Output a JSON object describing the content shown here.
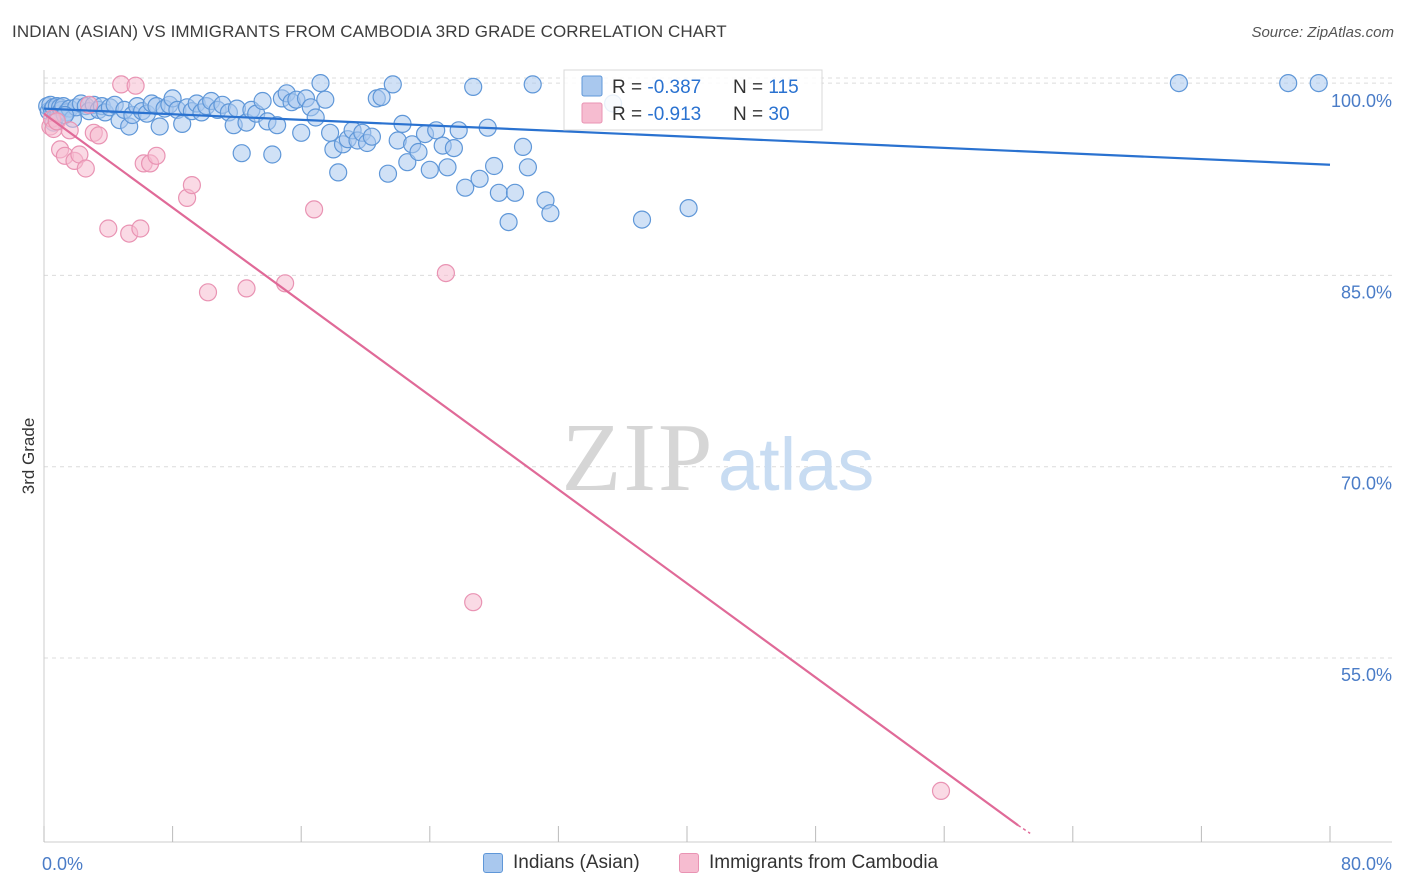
{
  "title": "INDIAN (ASIAN) VS IMMIGRANTS FROM CAMBODIA 3RD GRADE CORRELATION CHART",
  "source": "Source: ZipAtlas.com",
  "watermark": {
    "zip": "ZIP",
    "atlas": "atlas"
  },
  "colors": {
    "blue_fill": "#a9c8ee",
    "blue_stroke": "#5f97d8",
    "blue_line": "#2a72d0",
    "pink_fill": "#f6bcd0",
    "pink_stroke": "#e993b3",
    "pink_line": "#e06a98",
    "tick_label": "#4a7cc7",
    "grid": "#dcdcdc"
  },
  "legend_box": {
    "rows": [
      {
        "r_label": "R = ",
        "r_value": "-0.387",
        "n_label": "N = ",
        "n_value": "115"
      },
      {
        "r_label": "R = ",
        "r_value": "-0.913",
        "n_label": "N = ",
        "n_value": "30"
      }
    ]
  },
  "chart_data": {
    "type": "scatter",
    "title": "INDIAN (ASIAN) VS IMMIGRANTS FROM CAMBODIA 3RD GRADE CORRELATION CHART",
    "xlabel": "",
    "ylabel": "3rd Grade",
    "xlim": [
      0,
      80
    ],
    "ylim": [
      40.5,
      102.5
    ],
    "x_tick_labels": [
      "0.0%",
      "80.0%"
    ],
    "y_ticks": [
      100,
      85,
      70,
      55
    ],
    "y_tick_labels": [
      "100.0%",
      "85.0%",
      "70.0%",
      "55.0%"
    ],
    "grid": true,
    "legend_position": "bottom",
    "series": [
      {
        "name": "Indians (Asian)",
        "R": -0.387,
        "N": 115,
        "trend": {
          "x": [
            0,
            80
          ],
          "y": [
            98.0,
            93.6
          ]
        },
        "points": [
          [
            0.2,
            98.2
          ],
          [
            0.3,
            97.8
          ],
          [
            0.4,
            98.3
          ],
          [
            0.5,
            97.9
          ],
          [
            0.6,
            98.1
          ],
          [
            0.7,
            97.3
          ],
          [
            0.8,
            98.2
          ],
          [
            0.9,
            97.6
          ],
          [
            1.0,
            98.1
          ],
          [
            1.1,
            97.9
          ],
          [
            1.2,
            98.2
          ],
          [
            1.4,
            97.7
          ],
          [
            1.6,
            98.0
          ],
          [
            1.8,
            97.2
          ],
          [
            2.0,
            98.1
          ],
          [
            2.3,
            98.4
          ],
          [
            2.6,
            98.2
          ],
          [
            2.8,
            97.8
          ],
          [
            3.1,
            98.3
          ],
          [
            3.4,
            97.9
          ],
          [
            3.6,
            98.2
          ],
          [
            3.8,
            97.7
          ],
          [
            4.1,
            98.1
          ],
          [
            4.4,
            98.3
          ],
          [
            4.7,
            97.1
          ],
          [
            5.0,
            97.9
          ],
          [
            5.3,
            96.6
          ],
          [
            5.5,
            97.5
          ],
          [
            5.8,
            98.2
          ],
          [
            6.1,
            97.8
          ],
          [
            6.4,
            97.6
          ],
          [
            6.7,
            98.4
          ],
          [
            7.0,
            98.2
          ],
          [
            7.2,
            96.6
          ],
          [
            7.5,
            98.0
          ],
          [
            7.8,
            98.3
          ],
          [
            8.0,
            98.8
          ],
          [
            8.3,
            97.9
          ],
          [
            8.6,
            96.8
          ],
          [
            8.9,
            98.1
          ],
          [
            9.2,
            97.8
          ],
          [
            9.5,
            98.4
          ],
          [
            9.8,
            97.7
          ],
          [
            10.1,
            98.2
          ],
          [
            10.4,
            98.6
          ],
          [
            10.8,
            97.9
          ],
          [
            11.1,
            98.3
          ],
          [
            11.5,
            97.7
          ],
          [
            11.8,
            96.7
          ],
          [
            12.0,
            98.0
          ],
          [
            12.3,
            94.5
          ],
          [
            12.6,
            96.9
          ],
          [
            12.9,
            97.9
          ],
          [
            13.2,
            97.6
          ],
          [
            13.6,
            98.6
          ],
          [
            13.9,
            97.0
          ],
          [
            14.2,
            94.4
          ],
          [
            14.5,
            96.7
          ],
          [
            14.8,
            98.8
          ],
          [
            15.1,
            99.2
          ],
          [
            15.4,
            98.5
          ],
          [
            15.7,
            98.7
          ],
          [
            16.0,
            96.1
          ],
          [
            16.3,
            98.8
          ],
          [
            16.6,
            98.1
          ],
          [
            16.9,
            97.3
          ],
          [
            17.2,
            100.0
          ],
          [
            17.5,
            98.7
          ],
          [
            17.8,
            96.1
          ],
          [
            18.0,
            94.8
          ],
          [
            18.3,
            93.0
          ],
          [
            18.6,
            95.2
          ],
          [
            18.9,
            95.6
          ],
          [
            19.2,
            96.3
          ],
          [
            19.5,
            95.5
          ],
          [
            19.8,
            96.1
          ],
          [
            20.1,
            95.3
          ],
          [
            20.4,
            95.8
          ],
          [
            20.7,
            98.8
          ],
          [
            21.0,
            98.9
          ],
          [
            21.4,
            92.9
          ],
          [
            21.7,
            99.9
          ],
          [
            22.0,
            95.5
          ],
          [
            22.3,
            96.8
          ],
          [
            22.6,
            93.8
          ],
          [
            22.9,
            95.2
          ],
          [
            23.3,
            94.6
          ],
          [
            23.7,
            96.0
          ],
          [
            24.0,
            93.2
          ],
          [
            24.4,
            96.3
          ],
          [
            24.8,
            95.1
          ],
          [
            25.1,
            93.4
          ],
          [
            25.5,
            94.9
          ],
          [
            25.8,
            96.3
          ],
          [
            26.2,
            91.8
          ],
          [
            26.7,
            99.7
          ],
          [
            27.1,
            92.5
          ],
          [
            27.6,
            96.5
          ],
          [
            28.0,
            93.5
          ],
          [
            28.3,
            91.4
          ],
          [
            28.9,
            89.1
          ],
          [
            29.3,
            91.4
          ],
          [
            29.8,
            95.0
          ],
          [
            30.1,
            93.4
          ],
          [
            30.4,
            99.9
          ],
          [
            31.2,
            90.8
          ],
          [
            31.5,
            89.8
          ],
          [
            35.4,
            98.4
          ],
          [
            37.2,
            89.3
          ],
          [
            40.1,
            90.2
          ],
          [
            70.6,
            100.0
          ],
          [
            77.4,
            100.0
          ],
          [
            79.3,
            100.0
          ],
          [
            0.6,
            96.9
          ],
          [
            1.3,
            97.5
          ]
        ]
      },
      {
        "name": "Immigrants from Cambodia",
        "R": -0.913,
        "N": 30,
        "trend": {
          "x": [
            0,
            60.6
          ],
          "y": [
            97.6,
            41.8
          ]
        },
        "points": [
          [
            0.4,
            96.6
          ],
          [
            0.5,
            97.2
          ],
          [
            0.6,
            96.4
          ],
          [
            0.8,
            97.0
          ],
          [
            1.0,
            94.8
          ],
          [
            1.3,
            94.3
          ],
          [
            1.6,
            96.3
          ],
          [
            1.9,
            93.9
          ],
          [
            2.2,
            94.4
          ],
          [
            2.6,
            93.3
          ],
          [
            2.8,
            98.3
          ],
          [
            3.1,
            96.1
          ],
          [
            3.4,
            95.9
          ],
          [
            4.0,
            88.6
          ],
          [
            4.8,
            99.9
          ],
          [
            5.3,
            88.2
          ],
          [
            5.7,
            99.8
          ],
          [
            6.0,
            88.6
          ],
          [
            6.2,
            93.7
          ],
          [
            6.6,
            93.7
          ],
          [
            7.0,
            94.3
          ],
          [
            8.9,
            91.0
          ],
          [
            9.2,
            92.0
          ],
          [
            10.2,
            83.6
          ],
          [
            12.6,
            83.9
          ],
          [
            15.0,
            84.3
          ],
          [
            16.8,
            90.1
          ],
          [
            25.0,
            85.1
          ],
          [
            26.7,
            59.3
          ],
          [
            55.8,
            44.5
          ]
        ]
      }
    ]
  },
  "bottom_legend": [
    {
      "label": "Indians (Asian)"
    },
    {
      "label": "Immigrants from Cambodia"
    }
  ]
}
